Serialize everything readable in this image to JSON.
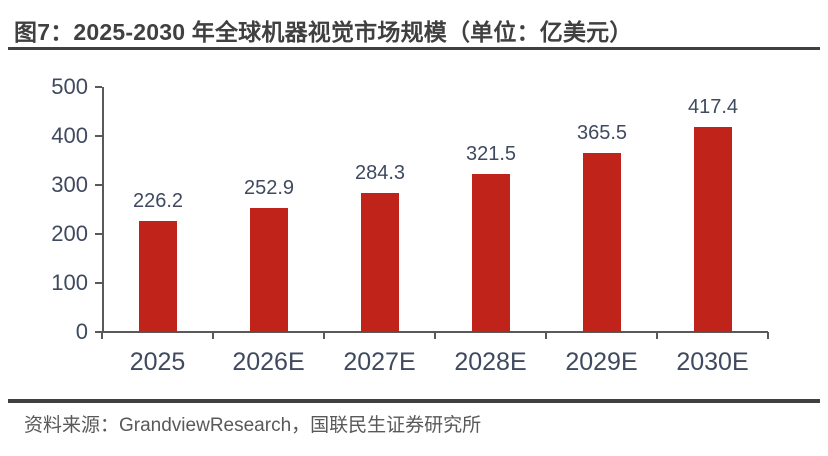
{
  "header": {
    "title": "图7：2025-2030 年全球机器视觉市场规模（单位：亿美元）"
  },
  "footer": {
    "source": "资料来源：GrandviewResearch，国联民生证券研究所"
  },
  "colors": {
    "bar": "#c0231a",
    "tick_label": "#3f4a5f",
    "axis": "#595959",
    "title_text": "#404040",
    "rule": "#404040",
    "source_text": "#595959"
  },
  "chart_data": {
    "type": "bar",
    "categories": [
      "2025",
      "2026E",
      "2027E",
      "2028E",
      "2029E",
      "2030E"
    ],
    "values": [
      226.2,
      252.9,
      284.3,
      321.5,
      365.5,
      417.4
    ],
    "title": "图7：2025-2030 年全球机器视觉市场规模（单位：亿美元）",
    "xlabel": "",
    "ylabel": "",
    "ylim": [
      0,
      500
    ],
    "yticks": [
      0,
      100,
      200,
      300,
      400,
      500
    ],
    "grid": false,
    "legend": "none",
    "data_labels": true,
    "bar_color": "#c0231a"
  }
}
